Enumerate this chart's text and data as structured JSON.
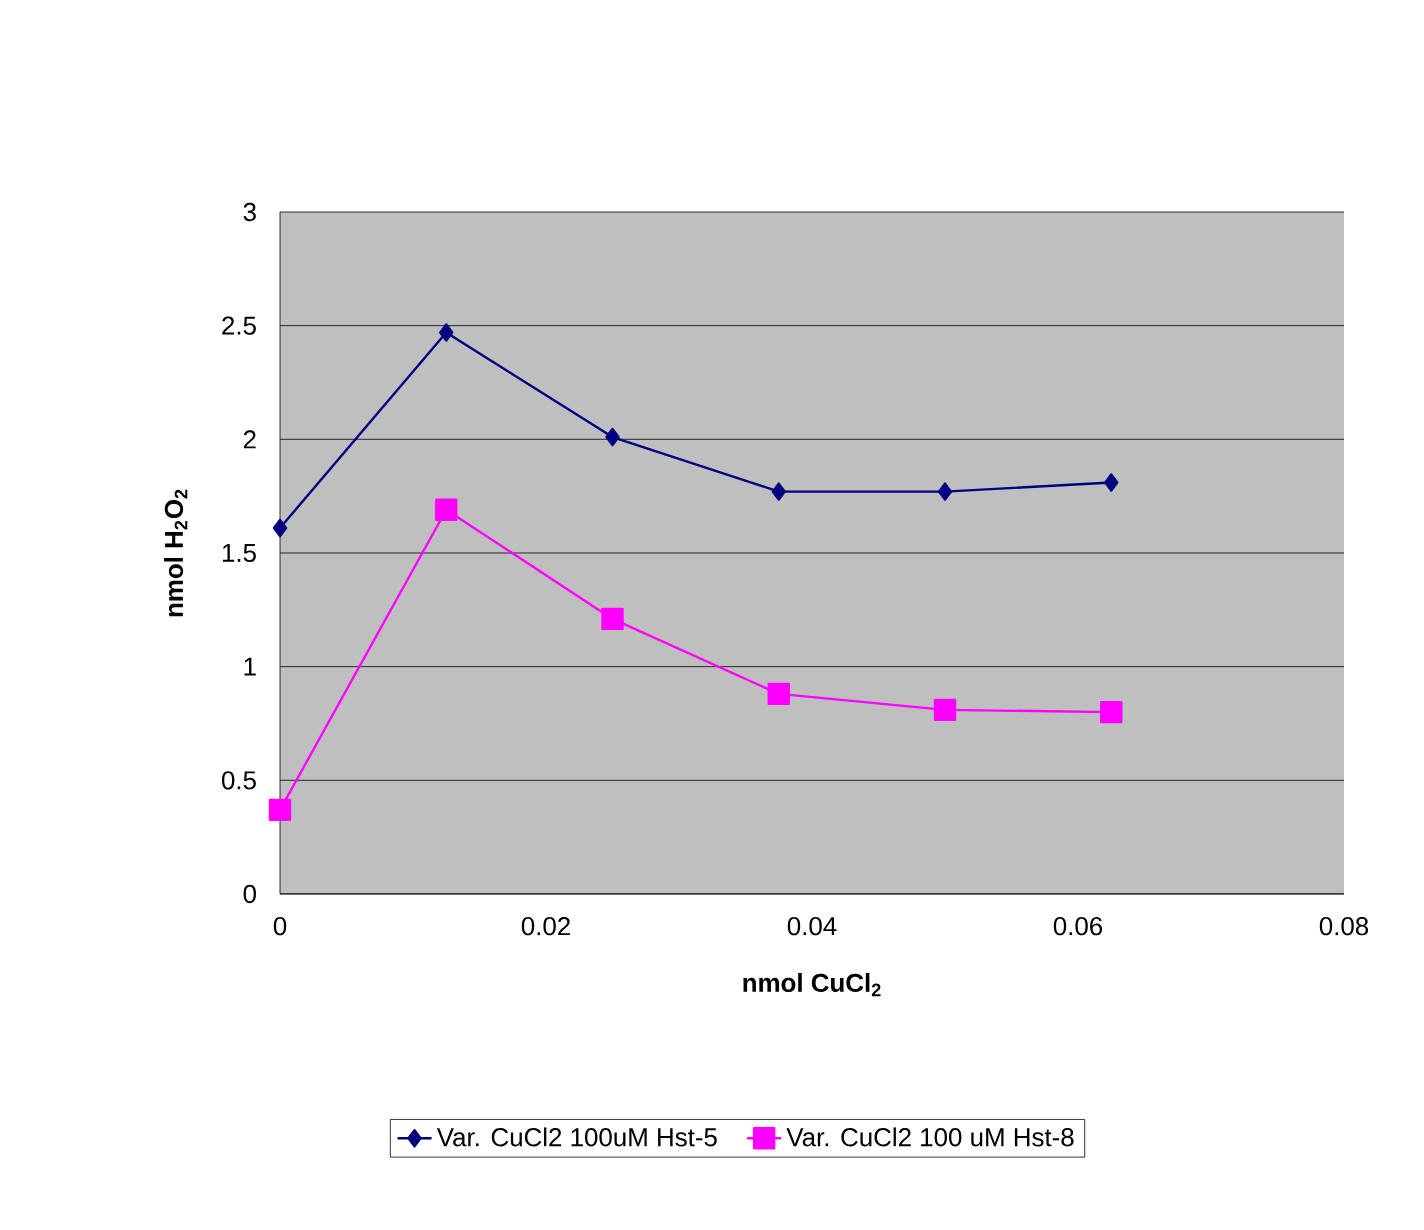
{
  "chart_data": {
    "type": "line",
    "xlabel": "nmol CuCl$_{2}$",
    "ylabel": "nmol H$_{2}$O$_{2}$",
    "x": [
      0,
      0.0125,
      0.025,
      0.0375,
      0.05,
      0.0625
    ],
    "series": [
      {
        "name": "Var. CuCl2 100uM Hst-5",
        "color": "#000080",
        "marker": "diamond",
        "values": [
          1.61,
          2.47,
          2.01,
          1.77,
          1.77,
          1.81
        ]
      },
      {
        "name": "Var. CuCl2 100 uM Hst-8",
        "color": "#ff00ff",
        "marker": "square",
        "values": [
          0.37,
          1.69,
          1.21,
          0.88,
          0.81,
          0.8
        ]
      }
    ],
    "xlim": [
      0,
      0.08
    ],
    "xticks": [
      0,
      0.02,
      0.04,
      0.06,
      0.08
    ],
    "ylim": [
      0,
      3
    ],
    "yticks": [
      0,
      0.5,
      1,
      1.5,
      2,
      2.5,
      3
    ],
    "grid": "y",
    "legend": "bottom",
    "line_style": "solid"
  }
}
